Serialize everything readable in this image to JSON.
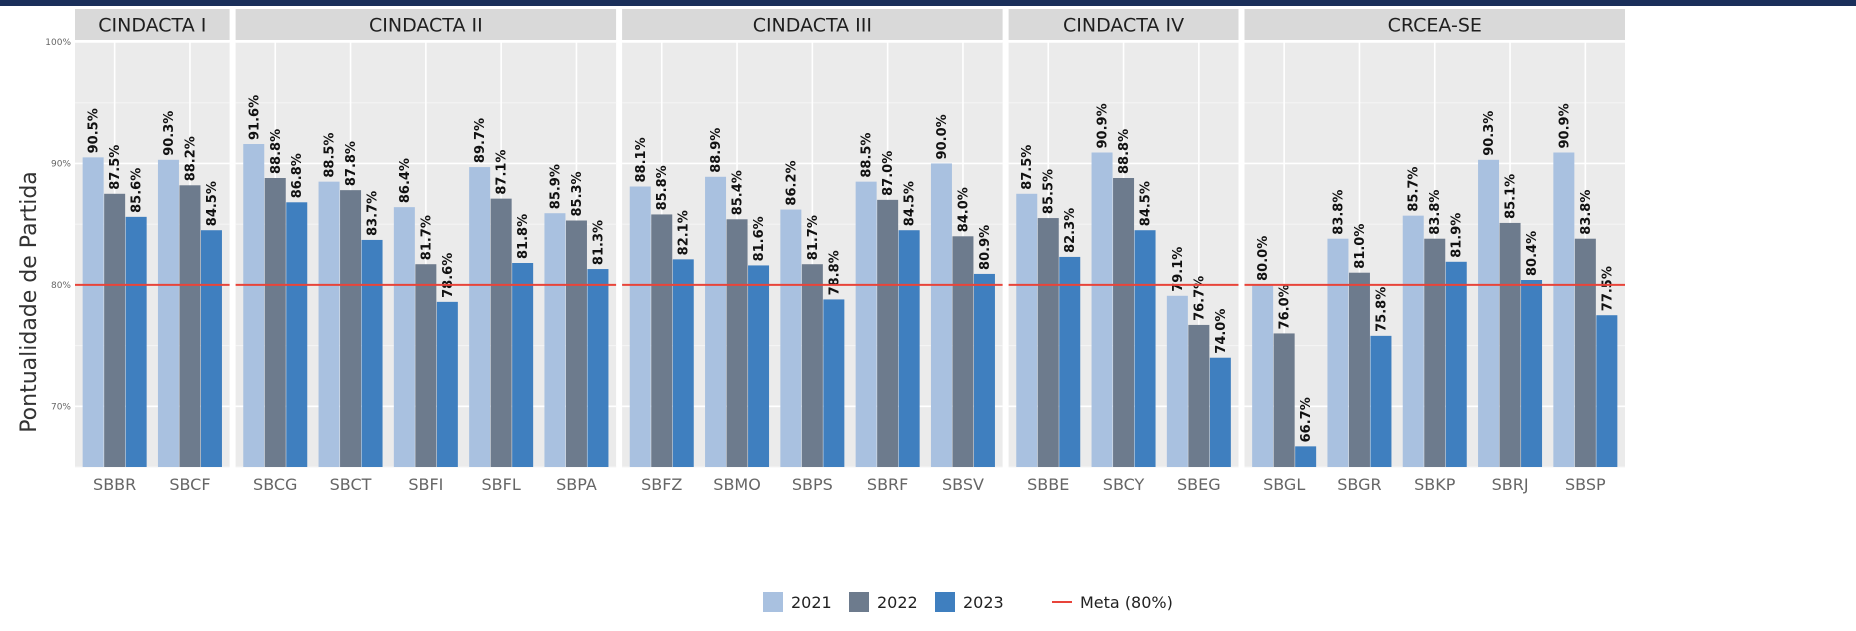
{
  "chart_data": {
    "type": "bar",
    "title": "",
    "xlabel": "",
    "ylabel": "Pontualidade de Partida",
    "ylim": [
      65,
      100
    ],
    "yticks": [
      70,
      80,
      90,
      100
    ],
    "ytick_labels": [
      "70%",
      "80%",
      "90%",
      "100%"
    ],
    "grid": true,
    "legend_position": "bottom",
    "reference_line": {
      "value": 80,
      "label": "Meta (80%)",
      "color": "#e8443a"
    },
    "series": [
      {
        "name": "2021",
        "color": "#a9c1e0"
      },
      {
        "name": "2022",
        "color": "#6d7b8d"
      },
      {
        "name": "2023",
        "color": "#3f7fbf"
      }
    ],
    "panels": [
      {
        "name": "CINDACTA I",
        "categories": [
          "SBBR",
          "SBCF"
        ],
        "values": {
          "2021": [
            90.5,
            90.3
          ],
          "2022": [
            87.5,
            88.2
          ],
          "2023": [
            85.6,
            84.5
          ]
        },
        "labels": {
          "2021": [
            "90.5%",
            "90.3%"
          ],
          "2022": [
            "87.5%",
            "88.2%"
          ],
          "2023": [
            "85.6%",
            "84.5%"
          ]
        }
      },
      {
        "name": "CINDACTA II",
        "categories": [
          "SBCG",
          "SBCT",
          "SBFI",
          "SBFL",
          "SBPA"
        ],
        "values": {
          "2021": [
            91.6,
            88.5,
            86.4,
            89.7,
            85.9
          ],
          "2022": [
            88.8,
            87.8,
            81.7,
            87.1,
            85.3
          ],
          "2023": [
            86.8,
            83.7,
            78.6,
            81.8,
            81.3
          ]
        },
        "labels": {
          "2021": [
            "91.6%",
            "88.5%",
            "86.4%",
            "89.7%",
            "85.9%"
          ],
          "2022": [
            "88.8%",
            "87.8%",
            "81.7%",
            "87.1%",
            "85.3%"
          ],
          "2023": [
            "86.8%",
            "83.7%",
            "78.6%",
            "81.8%",
            "81.3%"
          ]
        }
      },
      {
        "name": "CINDACTA III",
        "categories": [
          "SBFZ",
          "SBMO",
          "SBPS",
          "SBRF",
          "SBSV"
        ],
        "values": {
          "2021": [
            88.1,
            88.9,
            86.2,
            88.5,
            90.0
          ],
          "2022": [
            85.8,
            85.4,
            81.7,
            87.0,
            84.0
          ],
          "2023": [
            82.1,
            81.6,
            78.8,
            84.5,
            80.9
          ]
        },
        "labels": {
          "2021": [
            "88.1%",
            "88.9%",
            "86.2%",
            "88.5%",
            "90.0%"
          ],
          "2022": [
            "85.8%",
            "85.4%",
            "81.7%",
            "87.0%",
            "84.0%"
          ],
          "2023": [
            "82.1%",
            "81.6%",
            "78.8%",
            "84.5%",
            "80.9%"
          ]
        }
      },
      {
        "name": "CINDACTA IV",
        "categories": [
          "SBBE",
          "SBCY",
          "SBEG"
        ],
        "values": {
          "2021": [
            87.5,
            90.9,
            79.1
          ],
          "2022": [
            85.5,
            88.8,
            76.7
          ],
          "2023": [
            82.3,
            84.5,
            74.0
          ]
        },
        "labels": {
          "2021": [
            "87.5%",
            "90.9%",
            "79.1%"
          ],
          "2022": [
            "85.5%",
            "88.8%",
            "76.7%"
          ],
          "2023": [
            "82.3%",
            "84.5%",
            "74.0%"
          ]
        }
      },
      {
        "name": "CRCEA-SE",
        "categories": [
          "SBGL",
          "SBGR",
          "SBKP",
          "SBRJ",
          "SBSP"
        ],
        "values": {
          "2021": [
            80.0,
            83.8,
            85.7,
            90.3,
            90.9
          ],
          "2022": [
            76.0,
            81.0,
            83.8,
            85.1,
            83.8
          ],
          "2023": [
            66.7,
            75.8,
            81.9,
            80.4,
            77.5
          ]
        },
        "labels": {
          "2021": [
            "80.0%",
            "83.8%",
            "85.7%",
            "90.3%",
            "90.9%"
          ],
          "2022": [
            "76.0%",
            "81.0%",
            "83.8%",
            "85.1%",
            "83.8%"
          ],
          "2023": [
            "66.7%",
            "75.8%",
            "81.9%",
            "80.4%",
            "77.5%"
          ]
        }
      }
    ]
  }
}
